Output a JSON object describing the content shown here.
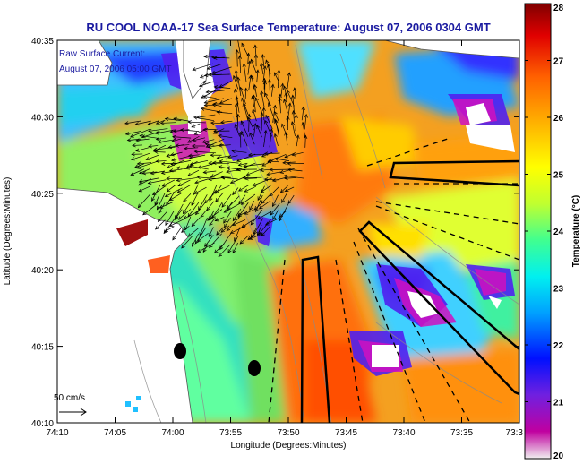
{
  "title": "RU COOL  NOAA-17  Sea Surface Temperature:  August 07, 2006 0304 GMT",
  "legend": {
    "line1": "Raw Surface Current:",
    "line2": "August 07, 2006 05:00 GMT",
    "scale_label": "50 cm/s"
  },
  "axes": {
    "xlabel": "Longitude (Degrees:Minutes)",
    "ylabel": "Latitude (Degrees:Minutes)",
    "x_ticks": [
      "74:10",
      "74:05",
      "74:00",
      "73:55",
      "73:50",
      "73:45",
      "73:40",
      "73:35",
      "73:3"
    ],
    "y_ticks": [
      "40:35",
      "40:30",
      "40:25",
      "40:20",
      "40:15",
      "40:10"
    ]
  },
  "colorbar": {
    "label": "Temperature (°C)",
    "ticks": [
      "28",
      "27",
      "26",
      "25",
      "24",
      "23",
      "22",
      "21",
      "20"
    ],
    "min": 20,
    "max": 28,
    "colors": [
      "#f0f0f0",
      "#c000a0",
      "#7020e0",
      "#0010ff",
      "#00a0ff",
      "#00f0f0",
      "#40ff90",
      "#c0ff30",
      "#ffff00",
      "#ffb000",
      "#ff6000",
      "#e00000",
      "#800000"
    ]
  }
}
